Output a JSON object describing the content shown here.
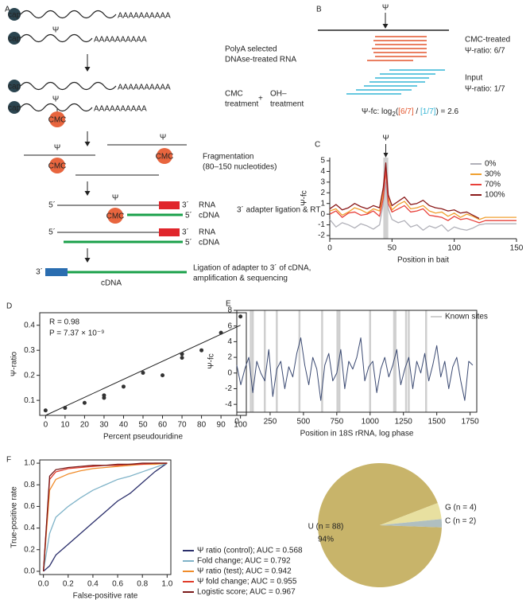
{
  "panel_a": {
    "label": "A",
    "cap": "cap",
    "polya": "AAAAAAAAAA",
    "psi": "Ψ",
    "cmc": "CMC",
    "step1": [
      "PolyA selected",
      "DNAse-treated RNA"
    ],
    "step2": [
      "CMC",
      "treatment",
      "+",
      "OH–",
      "treatment"
    ],
    "step3": [
      "Fragmentation",
      "(80–150 nucleotides)"
    ],
    "rna": "RNA",
    "cdna": "cDNA",
    "five": "5´",
    "three": "3´",
    "step4": "3´ adapter ligation & RT",
    "step5": [
      "Ligation of adapter to 3´ of cDNA,",
      "amplification & sequencing"
    ]
  },
  "panel_b": {
    "label": "B",
    "psi": "Ψ",
    "treated": [
      "CMC-treated",
      "Ψ-ratio: 6/7"
    ],
    "treated_color": "#e4572e",
    "input": [
      "Input",
      "Ψ-ratio: 1/7"
    ],
    "input_color": "#35b5d5",
    "formula": [
      "Ψ-fc: log",
      "2",
      "(",
      "[6/7]",
      " / ",
      "[1/7]",
      ") = 2.6"
    ]
  },
  "chart_data": [
    {
      "panel": "C",
      "type": "line",
      "xlabel": "Position in bait",
      "ylabel": "Ψ-fc",
      "annotation": "Ψ",
      "annotation_x": 45,
      "highlight": [
        43,
        47
      ],
      "x": [
        0,
        5,
        10,
        15,
        20,
        25,
        30,
        35,
        40,
        43,
        45,
        47,
        50,
        55,
        60,
        65,
        70,
        75,
        80,
        85,
        90,
        95,
        100,
        105,
        110,
        115,
        120,
        125,
        150
      ],
      "series": [
        {
          "name": "0%",
          "color": "#b0b0b8",
          "values": [
            -0.5,
            -1.2,
            -0.8,
            -1.0,
            -1.3,
            -0.9,
            -1.1,
            -1.4,
            -1.0,
            1.0,
            3.0,
            0.5,
            -0.5,
            -0.8,
            -0.6,
            -1.2,
            -1.0,
            -1.5,
            -1.1,
            -1.3,
            -1.0,
            -1.6,
            -1.2,
            -1.4,
            -1.5,
            -1.3,
            -1.0,
            -0.9,
            -0.9
          ]
        },
        {
          "name": "30%",
          "color": "#f0a030",
          "values": [
            0.3,
            0.5,
            -0.1,
            0.2,
            0.6,
            0.4,
            0.1,
            0.5,
            0.3,
            2.0,
            4.0,
            1.5,
            0.4,
            0.9,
            1.2,
            0.5,
            0.6,
            0.8,
            0.3,
            0.1,
            0.2,
            -0.2,
            0.1,
            -0.3,
            0.0,
            -0.2,
            -0.5,
            -0.3,
            -0.3
          ]
        },
        {
          "name": "70%",
          "color": "#e8403a",
          "values": [
            0.0,
            0.3,
            -0.3,
            0.1,
            0.2,
            -0.1,
            0.0,
            0.3,
            -0.2,
            1.5,
            4.2,
            1.0,
            0.2,
            0.5,
            0.8,
            0.2,
            0.3,
            0.5,
            -0.1,
            -0.2,
            -0.3,
            -0.6,
            -0.2,
            -0.5,
            -0.4,
            -0.6,
            -0.8,
            -0.6,
            -0.6
          ]
        },
        {
          "name": "100%",
          "color": "#8b1a1a",
          "values": [
            0.5,
            0.9,
            0.4,
            0.6,
            1.0,
            0.7,
            0.5,
            0.8,
            0.6,
            2.5,
            4.8,
            1.8,
            0.8,
            1.2,
            1.6,
            0.9,
            1.0,
            1.3,
            0.8,
            0.6,
            0.5,
            0.3,
            0.4,
            0.1,
            0.2,
            -0.1,
            -0.4,
            null,
            null
          ]
        }
      ],
      "xlim": [
        0,
        150
      ],
      "xticks": [
        0,
        50,
        100,
        150
      ],
      "ylim": [
        -2.3,
        5.3
      ],
      "yticks": [
        -2,
        -1,
        0,
        1,
        2,
        3,
        4,
        5
      ],
      "legend": "upper right"
    },
    {
      "panel": "D",
      "type": "scatter",
      "xlabel": "Percent pseudouridine",
      "ylabel": "Ψ-ratio",
      "color": "#333",
      "x": [
        0,
        10,
        20,
        30,
        30,
        40,
        50,
        60,
        70,
        70,
        80,
        90,
        100
      ],
      "values": [
        0.06,
        0.07,
        0.09,
        0.11,
        0.12,
        0.155,
        0.21,
        0.2,
        0.27,
        0.285,
        0.3,
        0.37,
        0.435
      ],
      "fit": {
        "x": [
          0,
          100
        ],
        "values": [
          0.04,
          0.4
        ]
      },
      "annotations": [
        "R = 0.98",
        "P = 7.37 × 10⁻⁹"
      ],
      "xlim": [
        -3,
        103
      ],
      "xticks": [
        0,
        10,
        20,
        30,
        40,
        50,
        60,
        70,
        80,
        90,
        100
      ],
      "ylim": [
        0.04,
        0.45
      ],
      "yticks": [
        0.1,
        0.2,
        0.3,
        0.4
      ]
    },
    {
      "panel": "E",
      "type": "line",
      "xlabel": "Position in 18S rRNA, log phase",
      "ylabel": "Ψ-fc",
      "color": "#3b4a72",
      "x": [
        0,
        30,
        60,
        90,
        120,
        150,
        180,
        210,
        240,
        270,
        300,
        330,
        360,
        390,
        420,
        450,
        480,
        510,
        540,
        570,
        600,
        630,
        660,
        690,
        720,
        750,
        780,
        810,
        840,
        870,
        900,
        930,
        960,
        990,
        1020,
        1050,
        1080,
        1110,
        1140,
        1170,
        1200,
        1230,
        1260,
        1290,
        1320,
        1350,
        1380,
        1410,
        1440,
        1470,
        1500,
        1530,
        1560,
        1590,
        1620,
        1650,
        1680,
        1710,
        1740,
        1770
      ],
      "values": [
        1.0,
        -1.5,
        0.5,
        2.0,
        -2.5,
        1.5,
        0.0,
        -1.0,
        3.0,
        -3.0,
        0.5,
        1.5,
        -2.0,
        0.8,
        -0.5,
        2.5,
        4.5,
        1.0,
        -1.5,
        2.0,
        0.5,
        -3.5,
        1.0,
        2.5,
        -1.0,
        0.0,
        3.0,
        -2.0,
        1.5,
        0.5,
        2.0,
        4.5,
        -1.0,
        0.8,
        1.5,
        -2.5,
        0.5,
        2.0,
        -0.5,
        1.0,
        3.0,
        -1.5,
        0.5,
        2.0,
        -2.0,
        1.5,
        0.0,
        2.5,
        -1.0,
        1.0,
        3.5,
        -0.5,
        1.5,
        -2.0,
        0.8,
        2.0,
        -1.0,
        -3.5,
        1.5,
        1.0
      ],
      "known_sites": {
        "name": "Known sites",
        "color": "#cfcfcf",
        "x": [
          105,
          120,
          210,
          300,
          470,
          640,
          755,
          770,
          1000,
          1180,
          1190,
          1270,
          1290,
          1420
        ]
      },
      "xlim": [
        0,
        1800
      ],
      "xticks": [
        0,
        250,
        500,
        750,
        1000,
        1250,
        1500,
        1750
      ],
      "ylim": [
        -5,
        8
      ],
      "yticks": [
        -4,
        -2,
        0,
        2,
        4,
        6,
        8
      ],
      "legend": "upper right"
    },
    {
      "panel": "F",
      "type": "line",
      "xlabel": "False-positive rate",
      "ylabel": "True-positive rate",
      "x": [
        0,
        0.05,
        0.1,
        0.2,
        0.3,
        0.4,
        0.5,
        0.6,
        0.7,
        0.8,
        0.9,
        1.0
      ],
      "series": [
        {
          "name": "Ψ ratio (control); AUC = 0.568",
          "color": "#2b2f6b",
          "values": [
            0,
            0.05,
            0.15,
            0.25,
            0.35,
            0.45,
            0.55,
            0.65,
            0.72,
            0.82,
            0.92,
            1.0
          ]
        },
        {
          "name": "Fold change; AUC = 0.792",
          "color": "#7fb3c8",
          "values": [
            0,
            0.35,
            0.5,
            0.6,
            0.68,
            0.75,
            0.8,
            0.85,
            0.88,
            0.92,
            0.96,
            1.0
          ]
        },
        {
          "name": "Ψ ratio (test); AUC = 0.942",
          "color": "#f08c2a",
          "values": [
            0,
            0.75,
            0.85,
            0.9,
            0.93,
            0.95,
            0.96,
            0.97,
            0.98,
            0.99,
            0.99,
            1.0
          ]
        },
        {
          "name": "Ψ fold change; AUC = 0.955",
          "color": "#e03c2a",
          "values": [
            0,
            0.85,
            0.92,
            0.95,
            0.96,
            0.97,
            0.98,
            0.98,
            0.99,
            0.99,
            1.0,
            1.0
          ]
        },
        {
          "name": "Logistic score; AUC = 0.967",
          "color": "#7a1a1a",
          "values": [
            0,
            0.88,
            0.94,
            0.96,
            0.97,
            0.98,
            0.98,
            0.99,
            0.99,
            1.0,
            1.0,
            1.0
          ]
        }
      ],
      "xlim": [
        -0.03,
        1.03
      ],
      "xticks": [
        {
          "value": 0,
          "label": "0.0"
        },
        0.2,
        0.4,
        0.6,
        0.8,
        {
          "value": 1,
          "label": "1.0"
        }
      ],
      "ylim": [
        -0.03,
        1.03
      ],
      "yticks": [
        {
          "value": 0,
          "label": "0.0"
        },
        0.2,
        0.4,
        0.6,
        0.8,
        {
          "value": 1,
          "label": "1.0"
        }
      ],
      "legend": "outside right"
    },
    {
      "panel": "G",
      "type": "pie",
      "values": [
        88,
        4,
        2
      ],
      "value_labels": [
        "U (n = 88)",
        "G (n = 4)",
        "C (n = 2)"
      ],
      "colors": [
        "#c8b46a",
        "#e8e0a0",
        "#b0bfc0"
      ],
      "annotation": "94%"
    }
  ]
}
